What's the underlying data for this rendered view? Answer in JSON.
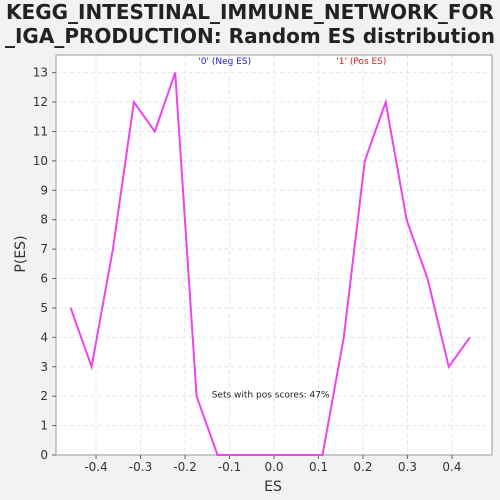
{
  "chart_data": {
    "type": "line",
    "title_lines": [
      "KEGG_INTESTINAL_IMMUNE_NETWORK_FOR",
      "_IGA_PRODUCTION: Random ES distribution"
    ],
    "xlabel": "ES",
    "ylabel": "P(ES)",
    "xlim": [
      -0.49,
      0.49
    ],
    "ylim": [
      0,
      13.6
    ],
    "x_ticks": [
      -0.4,
      -0.3,
      -0.2,
      -0.1,
      0.0,
      0.1,
      0.2,
      0.3,
      0.4
    ],
    "x_tick_labels": [
      "-0.4",
      "-0.3",
      "-0.2",
      "-0.1",
      "0.0",
      "0.1",
      "0.2",
      "0.3",
      "0.4"
    ],
    "y_ticks": [
      0,
      1,
      2,
      3,
      4,
      5,
      6,
      7,
      8,
      9,
      10,
      11,
      12,
      13
    ],
    "y_tick_labels": [
      "0",
      "1",
      "2",
      "3",
      "4",
      "5",
      "6",
      "7",
      "8",
      "9",
      "10",
      "11",
      "12",
      "13"
    ],
    "grid": true,
    "series": [
      {
        "color": "#ee44ee",
        "points": [
          [
            -0.457,
            5
          ],
          [
            -0.41,
            3
          ],
          [
            -0.362,
            7
          ],
          [
            -0.315,
            12
          ],
          [
            -0.268,
            11
          ],
          [
            -0.222,
            13
          ],
          [
            -0.174,
            2
          ],
          [
            -0.127,
            0
          ],
          [
            -0.08,
            0
          ],
          [
            -0.033,
            0
          ],
          [
            0.015,
            0
          ],
          [
            0.062,
            0
          ],
          [
            0.109,
            0
          ],
          [
            0.157,
            4
          ],
          [
            0.204,
            10
          ],
          [
            0.251,
            12
          ],
          [
            0.298,
            8
          ],
          [
            0.345,
            6
          ],
          [
            0.393,
            3
          ],
          [
            0.44,
            4
          ]
        ]
      }
    ],
    "annotations": [
      {
        "text": "'0' (Neg ES)",
        "x": -0.17,
        "y": 13.3,
        "color": "#2222cc"
      },
      {
        "text": "'1' (Pos ES)",
        "x": 0.14,
        "y": 13.3,
        "color": "#cc2222"
      },
      {
        "text": "Sets with pos scores: 47%",
        "x": -0.14,
        "y": 1.95,
        "color": "#222222"
      }
    ],
    "colors": {
      "plot_bg": "#ffffff",
      "grid": "#e6e6e6",
      "frame": "#999999"
    }
  }
}
